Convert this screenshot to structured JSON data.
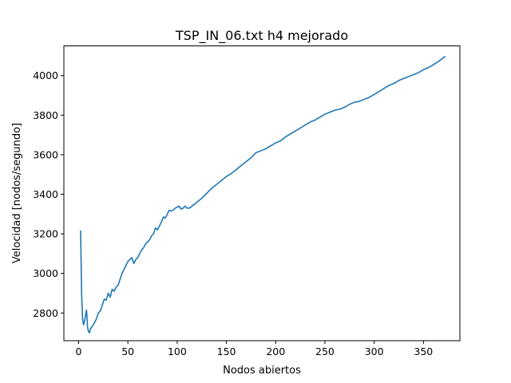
{
  "chart_data": {
    "type": "line",
    "title": "TSP_IN_06.txt h4 mejorado",
    "xlabel": "Nodos abiertos",
    "ylabel": "Velocidad [nodos/segundo]",
    "xlim": [
      -15,
      387
    ],
    "ylim": [
      2660,
      4150
    ],
    "xticks": [
      0,
      50,
      100,
      150,
      200,
      250,
      300,
      350
    ],
    "yticks": [
      2800,
      3000,
      3200,
      3400,
      3600,
      3800,
      4000
    ],
    "grid": false,
    "legend": "none",
    "line_color": "#1f77b4",
    "series": [
      {
        "x": [
          2,
          3,
          4,
          5,
          6,
          7,
          8,
          9,
          10,
          11,
          12,
          14,
          16,
          18,
          20,
          22,
          24,
          26,
          28,
          30,
          32,
          34,
          36,
          38,
          40,
          42,
          44,
          46,
          48,
          50,
          52,
          54,
          56,
          58,
          60,
          62,
          64,
          66,
          68,
          70,
          72,
          74,
          76,
          78,
          80,
          82,
          84,
          86,
          88,
          90,
          92,
          94,
          96,
          98,
          100,
          102,
          104,
          106,
          108,
          110,
          112,
          114,
          116,
          118,
          120,
          125,
          130,
          135,
          140,
          145,
          150,
          155,
          160,
          165,
          170,
          175,
          180,
          185,
          190,
          195,
          200,
          205,
          210,
          215,
          220,
          225,
          230,
          235,
          240,
          245,
          250,
          255,
          260,
          265,
          270,
          275,
          280,
          285,
          290,
          295,
          300,
          305,
          310,
          315,
          320,
          325,
          330,
          335,
          340,
          345,
          350,
          355,
          360,
          365,
          370,
          372
        ],
        "y": [
          3215,
          2900,
          2770,
          2740,
          2760,
          2790,
          2815,
          2730,
          2705,
          2700,
          2720,
          2735,
          2750,
          2770,
          2800,
          2810,
          2840,
          2870,
          2865,
          2900,
          2880,
          2920,
          2910,
          2930,
          2940,
          2970,
          3000,
          3020,
          3040,
          3060,
          3070,
          3080,
          3050,
          3070,
          3080,
          3100,
          3120,
          3130,
          3150,
          3160,
          3170,
          3190,
          3200,
          3230,
          3220,
          3240,
          3260,
          3285,
          3280,
          3300,
          3320,
          3315,
          3320,
          3330,
          3335,
          3340,
          3325,
          3330,
          3340,
          3330,
          3330,
          3335,
          3345,
          3350,
          3360,
          3380,
          3405,
          3430,
          3450,
          3470,
          3490,
          3505,
          3525,
          3545,
          3565,
          3585,
          3610,
          3620,
          3630,
          3645,
          3660,
          3670,
          3690,
          3705,
          3720,
          3735,
          3750,
          3765,
          3775,
          3790,
          3805,
          3815,
          3825,
          3830,
          3840,
          3855,
          3865,
          3870,
          3880,
          3890,
          3905,
          3920,
          3935,
          3950,
          3960,
          3975,
          3985,
          3995,
          4005,
          4015,
          4030,
          4040,
          4055,
          4070,
          4090,
          4095
        ]
      }
    ]
  }
}
